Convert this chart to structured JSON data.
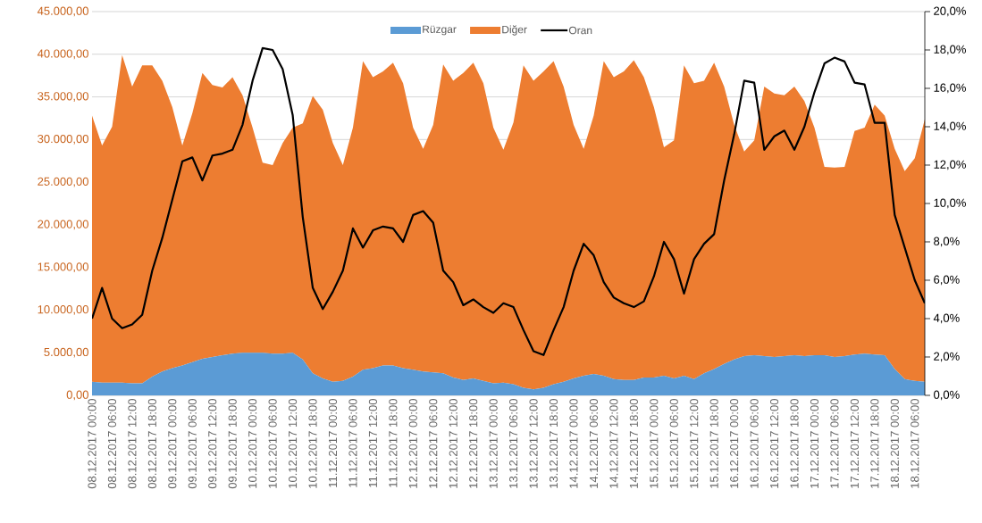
{
  "chart_data": {
    "type": "area",
    "stacked": true,
    "grid": "y",
    "legend": "top",
    "categories": [
      "08.12.2017 00:00",
      null,
      "08.12.2017 06:00",
      null,
      "08.12.2017 12:00",
      null,
      "08.12.2017 18:00",
      null,
      "09.12.2017 00:00",
      null,
      "09.12.2017 06:00",
      null,
      "09.12.2017 12:00",
      null,
      "09.12.2017 18:00",
      null,
      "10.12.2017 00:00",
      null,
      "10.12.2017 06:00",
      null,
      "10.12.2017 12:00",
      null,
      "10.12.2017 18:00",
      null,
      "11.12.2017 00:00",
      null,
      "11.12.2017 06:00",
      null,
      "11.12.2017 12:00",
      null,
      "11.12.2017 18:00",
      null,
      "12.12.2017 00:00",
      null,
      "12.12.2017 06:00",
      null,
      "12.12.2017 12:00",
      null,
      "12.12.2017 18:00",
      null,
      "13.12.2017 00:00",
      null,
      "13.12.2017 06:00",
      null,
      "13.12.2017 12:00",
      null,
      "13.12.2017 18:00",
      null,
      "14.12.2017 00:00",
      null,
      "14.12.2017 06:00",
      null,
      "14.12.2017 12:00",
      null,
      "14.12.2017 18:00",
      null,
      "15.12.2017 00:00",
      null,
      "15.12.2017 06:00",
      null,
      "15.12.2017 12:00",
      null,
      "15.12.2017 18:00",
      null,
      "16.12.2017 00:00",
      null,
      "16.12.2017 06:00",
      null,
      "16.12.2017 12:00",
      null,
      "16.12.2017 18:00",
      null,
      "17.12.2017 00:00",
      null,
      "17.12.2017 06:00",
      null,
      "17.12.2017 12:00",
      null,
      "17.12.2017 18:00",
      null,
      "18.12.2017 00:00",
      null,
      "18.12.2017 06:00",
      null
    ],
    "series": [
      {
        "name": "Rüzgar",
        "color": "#5b9bd5",
        "values": [
          1600,
          1500,
          1500,
          1500,
          1400,
          1400,
          2200,
          2800,
          3200,
          3500,
          3900,
          4300,
          4500,
          4700,
          4900,
          5000,
          5000,
          5000,
          4900,
          4900,
          5000,
          4200,
          2600,
          2000,
          1600,
          1700,
          2200,
          3000,
          3200,
          3500,
          3500,
          3200,
          3000,
          2800,
          2700,
          2600,
          2100,
          1800,
          2000,
          1700,
          1400,
          1500,
          1300,
          900,
          700,
          900,
          1300,
          1600,
          2000,
          2300,
          2500,
          2300,
          1900,
          1800,
          1800,
          2100,
          2100,
          2300,
          2000,
          2300,
          1900,
          2600,
          3100,
          3700,
          4200,
          4600,
          4700,
          4600,
          4500,
          4600,
          4700,
          4600,
          4700,
          4700,
          4500,
          4600,
          4800,
          4900,
          4800,
          4700,
          3100,
          1900,
          1700,
          1600
        ]
      },
      {
        "name": "Diğer",
        "color": "#ed7d31",
        "values": [
          31200,
          27800,
          30000,
          38400,
          34800,
          37300,
          36500,
          34100,
          30600,
          25800,
          29200,
          33500,
          31900,
          31400,
          32400,
          30200,
          26400,
          22300,
          22100,
          24700,
          26400,
          27700,
          32500,
          31500,
          28000,
          25300,
          29200,
          36200,
          34100,
          34500,
          35500,
          33400,
          28400,
          26100,
          29000,
          36200,
          34800,
          36000,
          37000,
          34900,
          30000,
          27300,
          30700,
          37800,
          36200,
          37100,
          37900,
          34600,
          29700,
          26600,
          30300,
          36900,
          35400,
          36200,
          37500,
          35200,
          31700,
          26800,
          27900,
          36400,
          34700,
          34300,
          35900,
          32500,
          27500,
          24000,
          25200,
          31600,
          30900,
          30600,
          31500,
          29900,
          26700,
          22100,
          22200,
          22200,
          26200,
          26500,
          29300,
          28100,
          25800,
          24400,
          26100,
          30800
        ]
      },
      {
        "name": "Oran",
        "color": "#000000",
        "type": "line",
        "axis": "y2",
        "values": [
          4.0,
          5.6,
          4.0,
          3.5,
          3.7,
          4.2,
          6.5,
          8.2,
          10.2,
          12.2,
          12.4,
          11.2,
          12.5,
          12.6,
          12.8,
          14.1,
          16.4,
          18.1,
          18.0,
          17.0,
          14.6,
          9.3,
          5.6,
          4.5,
          5.4,
          6.5,
          8.7,
          7.7,
          8.6,
          8.8,
          8.7,
          8.0,
          9.4,
          9.6,
          9.0,
          6.5,
          5.9,
          4.7,
          5.0,
          4.6,
          4.3,
          4.8,
          4.6,
          3.4,
          2.3,
          2.1,
          3.4,
          4.6,
          6.5,
          7.9,
          7.3,
          5.9,
          5.1,
          4.8,
          4.6,
          4.9,
          6.2,
          8.0,
          7.1,
          5.3,
          7.1,
          7.9,
          8.4,
          11.2,
          13.6,
          16.4,
          16.3,
          12.8,
          13.5,
          13.8,
          12.8,
          14.0,
          15.8,
          17.3,
          17.6,
          17.4,
          16.3,
          16.2,
          14.2,
          14.2,
          9.4,
          7.7,
          6.0,
          4.8
        ]
      }
    ],
    "ylim": [
      0,
      45000
    ],
    "yticks": [
      {
        "value": 0,
        "label": "0,00"
      },
      {
        "value": 5000,
        "label": "5.000,00"
      },
      {
        "value": 10000,
        "label": "10.000,00"
      },
      {
        "value": 15000,
        "label": "15.000,00"
      },
      {
        "value": 20000,
        "label": "20.000,00"
      },
      {
        "value": 25000,
        "label": "25.000,00"
      },
      {
        "value": 30000,
        "label": "30.000,00"
      },
      {
        "value": 35000,
        "label": "35.000,00"
      },
      {
        "value": 40000,
        "label": "40.000,00"
      },
      {
        "value": 45000,
        "label": "45.000,00"
      }
    ],
    "y2lim": [
      0,
      20
    ],
    "y2ticks": [
      {
        "value": 0,
        "label": "0,0%"
      },
      {
        "value": 2,
        "label": "2,0%"
      },
      {
        "value": 4,
        "label": "4,0%"
      },
      {
        "value": 6,
        "label": "6,0%"
      },
      {
        "value": 8,
        "label": "8,0%"
      },
      {
        "value": 10,
        "label": "10,0%"
      },
      {
        "value": 12,
        "label": "12,0%"
      },
      {
        "value": 14,
        "label": "14,0%"
      },
      {
        "value": 16,
        "label": "16,0%"
      },
      {
        "value": 18,
        "label": "18,0%"
      },
      {
        "value": 20,
        "label": "20,0%"
      }
    ]
  }
}
